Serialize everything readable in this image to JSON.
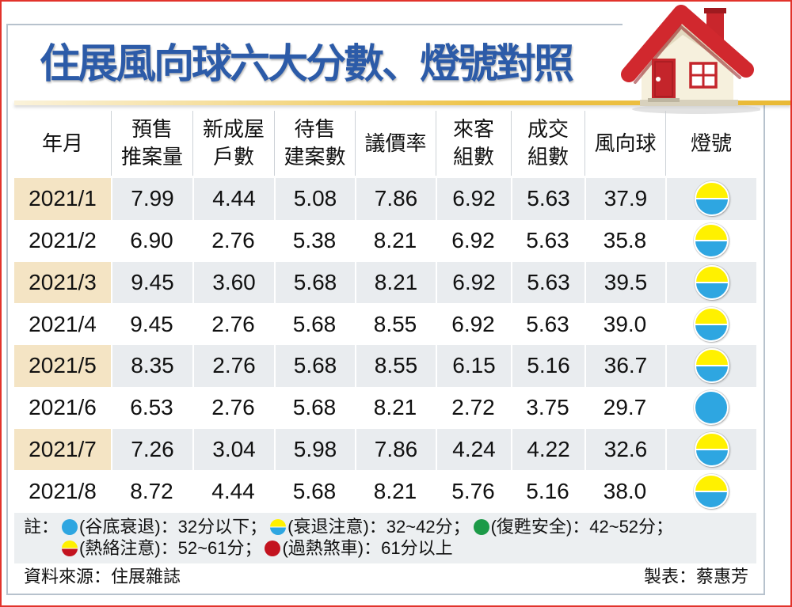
{
  "chart_data": {
    "type": "table",
    "title": "住展風向球六大分數、燈號對照",
    "headers": [
      [
        "年月"
      ],
      [
        "預售",
        "推案量"
      ],
      [
        "新成屋",
        "戶數"
      ],
      [
        "待售",
        "建案數"
      ],
      [
        "議價率"
      ],
      [
        "來客",
        "組數"
      ],
      [
        "成交",
        "組數"
      ],
      [
        "風向球"
      ],
      [
        "燈號"
      ]
    ],
    "rows": [
      {
        "cells": [
          "2021/1",
          "7.99",
          "4.44",
          "5.08",
          "7.86",
          "6.92",
          "5.63",
          "37.9"
        ],
        "light": "yellow-blue-light-icon"
      },
      {
        "cells": [
          "2021/2",
          "6.90",
          "2.76",
          "5.38",
          "8.21",
          "6.92",
          "5.63",
          "35.8"
        ],
        "light": "yellow-blue-light-icon"
      },
      {
        "cells": [
          "2021/3",
          "9.45",
          "3.60",
          "5.68",
          "8.21",
          "6.92",
          "5.63",
          "39.5"
        ],
        "light": "yellow-blue-light-icon"
      },
      {
        "cells": [
          "2021/4",
          "9.45",
          "2.76",
          "5.68",
          "8.55",
          "6.92",
          "5.63",
          "39.0"
        ],
        "light": "yellow-blue-light-icon"
      },
      {
        "cells": [
          "2021/5",
          "8.35",
          "2.76",
          "5.68",
          "8.55",
          "6.15",
          "5.16",
          "36.7"
        ],
        "light": "yellow-blue-light-icon"
      },
      {
        "cells": [
          "2021/6",
          "6.53",
          "2.76",
          "5.68",
          "8.21",
          "2.72",
          "3.75",
          "29.7"
        ],
        "light": "blue-light-icon"
      },
      {
        "cells": [
          "2021/7",
          "7.26",
          "3.04",
          "5.98",
          "7.86",
          "4.24",
          "4.22",
          "32.6"
        ],
        "light": "yellow-blue-light-icon"
      },
      {
        "cells": [
          "2021/8",
          "8.72",
          "4.44",
          "5.68",
          "8.21",
          "5.76",
          "5.16",
          "38.0"
        ],
        "light": "yellow-blue-light-icon"
      }
    ]
  },
  "legend": {
    "label": "註：",
    "lines": [
      [
        {
          "icon": "blue-light-icon",
          "text": "(谷底衰退)：32分以下；"
        },
        {
          "icon": "yellow-blue-light-icon",
          "text": "(衰退注意)：32~42分；"
        },
        {
          "icon": "green-light-icon",
          "text": "(復甦安全)：42~52分；"
        }
      ],
      [
        {
          "icon": "yellow-red-light-icon",
          "text": "(熱絡注意)：52~61分；"
        },
        {
          "icon": "red-light-icon",
          "text": "(過熱煞車)：61分以上"
        }
      ]
    ]
  },
  "footer": {
    "source": "資料來源：住展雜誌",
    "credit": "製表：蔡惠芳"
  },
  "colors": {
    "title": "#2c5ba8",
    "blue": "#2ea6e1",
    "yellow": "#fff100",
    "green": "#1c9a48",
    "red": "#c3131f",
    "row_shade": "#e9ecef",
    "month_shade": "#f4e4c4"
  }
}
